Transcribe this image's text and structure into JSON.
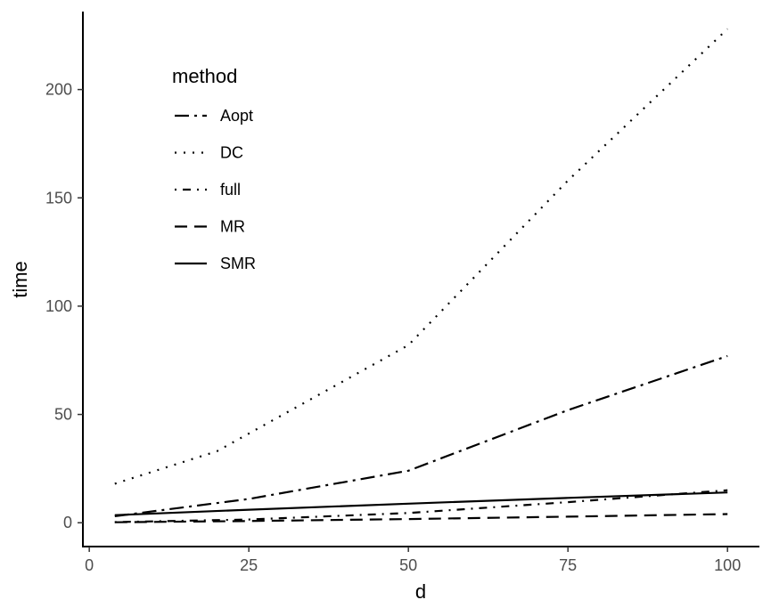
{
  "chart_data": {
    "type": "line",
    "xlabel": "d",
    "ylabel": "time",
    "xlim": [
      -1,
      105
    ],
    "ylim": [
      -11,
      236
    ],
    "x_ticks": [
      0,
      25,
      50,
      75,
      100
    ],
    "y_ticks": [
      0,
      50,
      100,
      150,
      200
    ],
    "grid": false,
    "legend": {
      "title": "method",
      "placement": "top-left inside"
    },
    "series": [
      {
        "name": "Aopt",
        "linetype": "longdash-dot",
        "x": [
          4,
          25,
          50,
          75,
          100
        ],
        "y": [
          3,
          11,
          24,
          52,
          77
        ]
      },
      {
        "name": "DC",
        "linetype": "dotted",
        "x": [
          4,
          20,
          50,
          75,
          100
        ],
        "y": [
          18,
          33,
          82,
          158,
          228
        ]
      },
      {
        "name": "full",
        "linetype": "dot-dash",
        "x": [
          4,
          25,
          50,
          75,
          100
        ],
        "y": [
          0.3,
          1.5,
          4.5,
          9.5,
          15
        ]
      },
      {
        "name": "MR",
        "linetype": "dashed",
        "x": [
          4,
          25,
          50,
          75,
          100
        ],
        "y": [
          0.2,
          0.8,
          1.7,
          2.8,
          4
        ]
      },
      {
        "name": "SMR",
        "linetype": "solid",
        "x": [
          4,
          25,
          50,
          75,
          100
        ],
        "y": [
          3.5,
          6,
          8.8,
          11.5,
          14
        ]
      }
    ]
  }
}
